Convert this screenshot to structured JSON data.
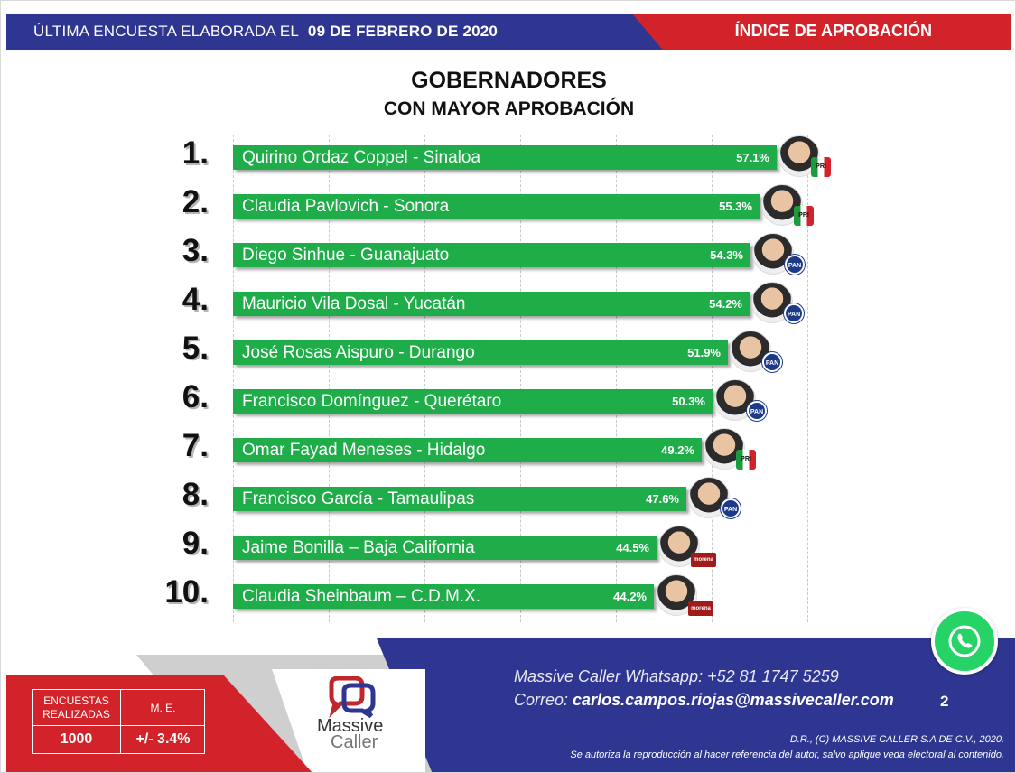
{
  "header": {
    "left_prefix": "ÚLTIMA ENCUESTA ELABORADA EL",
    "left_date": "09 DE FEBRERO DE 2020",
    "right": "ÍNDICE DE APROBACIÓN"
  },
  "title_line1": "GOBERNADORES",
  "title_line2": "CON MAYOR APROBACIÓN",
  "chart_data": {
    "type": "bar",
    "orientation": "horizontal",
    "title": "GOBERNADORES CON MAYOR APROBACIÓN",
    "categories": [
      "Quirino Ordaz Coppel - Sinaloa",
      "Claudia Pavlovich - Sonora",
      "Diego Sinhue - Guanajuato",
      "Mauricio Vila Dosal - Yucatán",
      "José Rosas Aispuro - Durango",
      "Francisco Domínguez - Querétaro",
      "Omar Fayad Meneses - Hidalgo",
      "Francisco García - Tamaulipas",
      "Jaime Bonilla – Baja California",
      "Claudia Sheinbaum – C.D.M.X."
    ],
    "values": [
      57.1,
      55.3,
      54.3,
      54.2,
      51.9,
      50.3,
      49.2,
      47.6,
      44.5,
      44.2
    ],
    "value_labels": [
      "57.1%",
      "55.3%",
      "54.3%",
      "54.2%",
      "51.9%",
      "50.3%",
      "49.2%",
      "47.6%",
      "44.5%",
      "44.2%"
    ],
    "ranks": [
      "1.",
      "2.",
      "3.",
      "4.",
      "5.",
      "6.",
      "7.",
      "8.",
      "9.",
      "10."
    ],
    "parties": [
      "PRI",
      "PRI",
      "PAN",
      "PAN",
      "PAN",
      "PAN",
      "PRI",
      "PAN",
      "morena",
      "morena"
    ],
    "bar_color": "#1fad4a",
    "grid": true
  },
  "party_badges": {
    "pri": "PRI",
    "pan": "PAN",
    "morena": "morena"
  },
  "stats": {
    "label1_a": "ENCUESTAS",
    "label1_b": "REALIZADAS",
    "label2": "M. E.",
    "value1": "1000",
    "value2": "+/- 3.4%"
  },
  "logo": {
    "line1": "Massive",
    "line2": "Caller"
  },
  "contact": {
    "whatsapp": "Massive Caller Whatsapp: +52   81 1747 5259",
    "email_label": "Correo:",
    "email": "carlos.campos.riojas@massivecaller.com"
  },
  "page_number": "2",
  "legal_line1": "D.R., (C) MASSIVE CALLER S.A DE C.V., 2020.",
  "legal_line2": "Se autoriza la reproducción al hacer referencia del autor, salvo aplique veda electoral al contenido.",
  "colors": {
    "blue": "#2e3691",
    "red": "#d2232a",
    "green": "#1fad4a",
    "whatsapp": "#25d366"
  }
}
